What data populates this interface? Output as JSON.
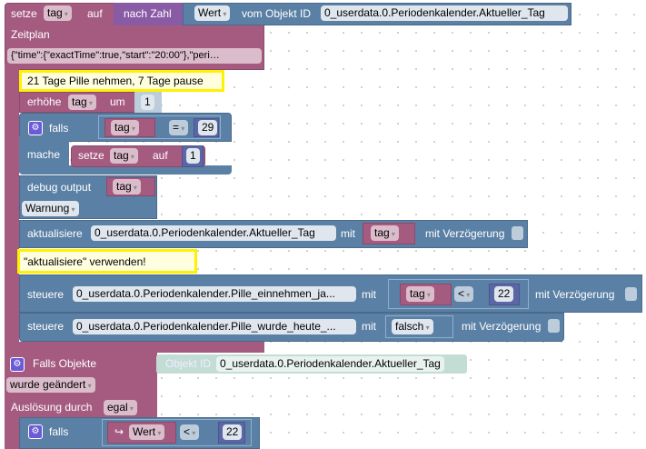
{
  "set1": {
    "setze": "setze",
    "var": "tag",
    "auf": "auf",
    "nach_zahl": "nach Zahl",
    "wert": "Wert",
    "vom_objekt": "vom Objekt ID",
    "object_id": "0_userdata.0.Periodenkalender.Aktueller_Tag"
  },
  "schedule": {
    "label": "Zeitplan",
    "value": "{\"time\":{\"exactTime\":true,\"start\":\"20:00\"},\"peri…"
  },
  "comment1": "21 Tage Pille nehmen, 7 Tage pause",
  "increment": {
    "label": "erhöhe",
    "var": "tag",
    "um": "um",
    "value": "1"
  },
  "if1": {
    "label": "falls",
    "var": "tag",
    "op": "=",
    "value": "29",
    "do": "mache",
    "setze": "setze",
    "set_var": "tag",
    "auf": "auf",
    "set_value": "1"
  },
  "debug": {
    "label": "debug output",
    "var": "tag",
    "level": "Warnung"
  },
  "update": {
    "label": "aktualisiere",
    "object_id": "0_userdata.0.Periodenkalender.Aktueller_Tag",
    "mit": "mit",
    "var": "tag",
    "delay": "mit Verzögerung"
  },
  "comment2": "\"aktualisiere\" verwenden!",
  "control1": {
    "label": "steuere",
    "object_id": "0_userdata.0.Periodenkalender.Pille_einnehmen_ja...",
    "mit": "mit",
    "var": "tag",
    "op": "<",
    "value": "22",
    "delay": "mit Verzögerung"
  },
  "control2": {
    "label": "steuere",
    "object_id": "0_userdata.0.Periodenkalender.Pille_wurde_heute_...",
    "mit": "mit",
    "value": "falsch",
    "delay": "mit Verzögerung"
  },
  "trigger": {
    "label": "Falls Objekte",
    "objekt_id_label": "Objekt ID",
    "object_id": "0_userdata.0.Periodenkalender.Aktueller_Tag",
    "event": "wurde geändert",
    "ausloesung": "Auslösung durch",
    "ausloesung_value": "egal"
  },
  "if2": {
    "label": "falls",
    "var": "Wert",
    "op": "<",
    "value": "22"
  },
  "colors": {
    "variable": "#a55b80",
    "logic": "#5b80a5",
    "math": "#5b67a5",
    "convert": "#8a5ba5",
    "comment": "#fff200"
  }
}
